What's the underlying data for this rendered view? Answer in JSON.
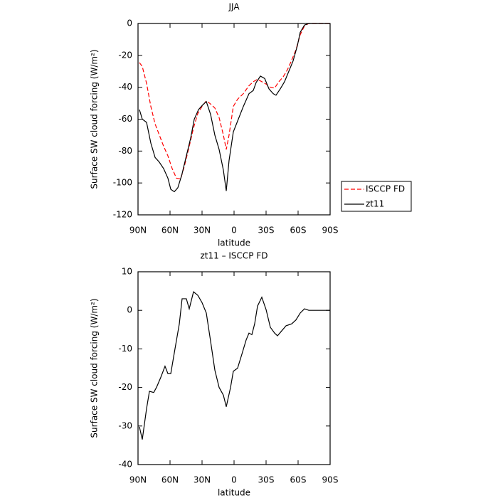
{
  "chart_data": [
    {
      "type": "line",
      "title": "JJA",
      "xlabel": "latitude",
      "ylabel": "Surface SW cloud forcing (W/m²)",
      "xlim": [
        90,
        -90
      ],
      "ylim": [
        0,
        -120
      ],
      "xticks": [
        {
          "value": 90,
          "label": "90N"
        },
        {
          "value": 60,
          "label": "60N"
        },
        {
          "value": 30,
          "label": "30N"
        },
        0,
        {
          "value": -30,
          "label": "30S"
        },
        {
          "value": -60,
          "label": "60S"
        },
        {
          "value": -90,
          "label": "90S"
        }
      ],
      "yticks": [
        0,
        -20,
        -40,
        -60,
        -80,
        -100,
        -120
      ],
      "legend": "right",
      "series": [
        {
          "name": "ISCCP FD",
          "color": "#ff0000",
          "dashed": true,
          "x": [
            88.7,
            86,
            82,
            78,
            74,
            70,
            66,
            62,
            58,
            54,
            50,
            46,
            42,
            38,
            34,
            30,
            26,
            22,
            18,
            14,
            10,
            7.3,
            4.7,
            0.7,
            -3.3,
            -8.7,
            -14,
            -18,
            -22,
            -26,
            -30,
            -34,
            -38,
            -42,
            -46,
            -50,
            -54,
            -58,
            -62,
            -66,
            -70,
            -90
          ],
          "values": [
            -24.5,
            -27,
            -37.5,
            -52,
            -63,
            -70,
            -77,
            -83,
            -91,
            -97,
            -97.5,
            -88,
            -77,
            -65.5,
            -56.5,
            -52,
            -48.5,
            -50.5,
            -53,
            -59,
            -70,
            -79,
            -70,
            -52,
            -47.5,
            -44,
            -39,
            -36.5,
            -35,
            -36.5,
            -38,
            -40,
            -40.5,
            -36.5,
            -33.5,
            -29,
            -23,
            -16.5,
            -7,
            -1.5,
            0,
            0
          ]
        },
        {
          "name": "zt11",
          "color": "#000000",
          "dashed": false,
          "x": [
            88.7,
            86,
            82,
            78,
            74,
            70,
            66,
            62,
            59.3,
            56,
            52.7,
            49,
            44.7,
            40.7,
            37.3,
            33.3,
            29.3,
            26,
            22,
            18,
            14,
            10,
            7.3,
            4.7,
            0.7,
            -4,
            -8.7,
            -14,
            -18,
            -20.7,
            -24.7,
            -28.7,
            -32.7,
            -36.7,
            -39.3,
            -43.3,
            -47.3,
            -51.3,
            -55.3,
            -59.3,
            -62,
            -66,
            -70,
            -90
          ],
          "values": [
            -54,
            -60,
            -62,
            -75,
            -84,
            -87,
            -91,
            -97,
            -104,
            -105.5,
            -103,
            -95,
            -83,
            -72,
            -60,
            -54,
            -51,
            -49,
            -57,
            -70,
            -79,
            -92,
            -105,
            -86,
            -68,
            -60,
            -52,
            -44,
            -42,
            -37,
            -33,
            -34.5,
            -41,
            -44,
            -45,
            -41,
            -36.5,
            -30,
            -23.5,
            -14,
            -5.5,
            -1,
            0,
            0
          ]
        }
      ]
    },
    {
      "type": "line",
      "title": "zt11 – ISCCP FD",
      "xlabel": "latitude",
      "ylabel": "Surface SW cloud forcing (W/m²)",
      "xlim": [
        90,
        -90
      ],
      "ylim": [
        10,
        -40
      ],
      "xticks": [
        {
          "value": 90,
          "label": "90N"
        },
        {
          "value": 60,
          "label": "60N"
        },
        {
          "value": 30,
          "label": "30N"
        },
        0,
        {
          "value": -30,
          "label": "30S"
        },
        {
          "value": -60,
          "label": "60S"
        },
        {
          "value": -90,
          "label": "90S"
        }
      ],
      "yticks": [
        10,
        0,
        -10,
        -20,
        -30,
        -40
      ],
      "series": [
        {
          "color": "#000000",
          "dashed": false,
          "x": [
            88.7,
            86,
            82,
            79.3,
            75.3,
            72.7,
            68.7,
            64.7,
            62,
            59.3,
            55.3,
            51.3,
            48.7,
            44.7,
            42,
            38,
            34,
            30,
            26,
            22,
            18,
            14,
            10,
            7.3,
            3.3,
            0.7,
            -3.3,
            -7.3,
            -11.3,
            -14,
            -16.7,
            -19.3,
            -22,
            -26,
            -30,
            -34,
            -38,
            -40.7,
            -44.7,
            -48.7,
            -54,
            -58,
            -62,
            -66,
            -70,
            -90
          ],
          "values": [
            -30.2,
            -33.5,
            -25.5,
            -21,
            -21.3,
            -20,
            -17.4,
            -14.5,
            -16.4,
            -16.4,
            -9.9,
            -3.5,
            3,
            3,
            0.4,
            4.8,
            3.9,
            2,
            -0.7,
            -8,
            -15.5,
            -20,
            -22,
            -25,
            -20,
            -15.8,
            -15,
            -11.4,
            -7.7,
            -5.9,
            -6.3,
            -3.5,
            1.1,
            3.4,
            0.2,
            -4.4,
            -5.9,
            -6.6,
            -5.3,
            -4,
            -3.5,
            -2.5,
            -0.7,
            0.4,
            0,
            0
          ]
        }
      ]
    }
  ]
}
